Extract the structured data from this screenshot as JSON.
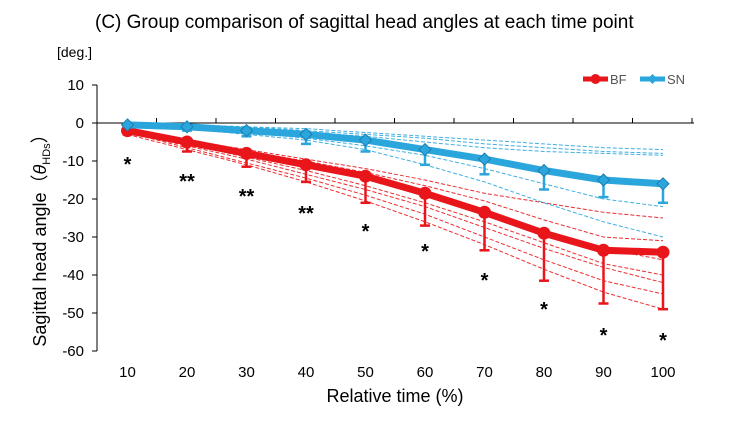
{
  "chart_data": {
    "type": "line",
    "title": "(C) Group comparison of sagittal head angles at each time point",
    "unit_label": "[deg.]",
    "xlabel": "Relative time (%)",
    "ylabel_main": "Sagittal head angle（",
    "ylabel_theta": "θ",
    "ylabel_sub": "HDs",
    "ylabel_close": "）",
    "x": [
      10,
      20,
      30,
      40,
      50,
      60,
      70,
      80,
      90,
      100
    ],
    "x_ticks": [
      "10",
      "20",
      "30",
      "40",
      "50",
      "60",
      "70",
      "80",
      "90",
      "100"
    ],
    "ylim": [
      -60,
      10
    ],
    "y_ticks": [
      10,
      0,
      -10,
      -20,
      -30,
      -40,
      -50,
      -60
    ],
    "legend_position": "top-right",
    "series": [
      {
        "name": "BF",
        "color": "#e8161b",
        "marker": "circle",
        "values": [
          -2,
          -5,
          -8,
          -11,
          -14,
          -18.5,
          -23.5,
          -29,
          -33.5,
          -34
        ],
        "error_down": [
          1,
          2.5,
          3.5,
          4.5,
          7,
          8.5,
          10,
          12.5,
          14,
          15
        ],
        "error_direction": "down"
      },
      {
        "name": "SN",
        "color": "#2ba6dc",
        "marker": "diamond",
        "values": [
          -0.5,
          -1,
          -2,
          -3,
          -4.5,
          -7,
          -9.5,
          -12.5,
          -15,
          -16
        ],
        "error_down": [
          0.5,
          1,
          1.5,
          2.5,
          3,
          4,
          4,
          5,
          4.5,
          5
        ],
        "error_direction": "down"
      }
    ],
    "individual_lines": {
      "BF": [
        [
          -2,
          -4.5,
          -7,
          -9.5,
          -12,
          -15,
          -18.5,
          -21,
          -23.5,
          -25
        ],
        [
          -2,
          -4.5,
          -7.5,
          -10,
          -13,
          -16.5,
          -20.5,
          -25.5,
          -30,
          -31
        ],
        [
          -2,
          -5,
          -8,
          -11,
          -14,
          -18,
          -23,
          -28.5,
          -33,
          -36
        ],
        [
          -2,
          -5.5,
          -9,
          -12.5,
          -16.5,
          -21,
          -26,
          -31.5,
          -37,
          -40
        ],
        [
          -2.5,
          -6,
          -9.5,
          -13.5,
          -17.5,
          -22,
          -27.5,
          -33,
          -38,
          -42
        ],
        [
          -2.5,
          -6.5,
          -10.5,
          -14.5,
          -19,
          -24,
          -30,
          -36,
          -41.5,
          -45
        ],
        [
          -3,
          -7,
          -11,
          -15.5,
          -20.5,
          -26,
          -32,
          -38.5,
          -44.5,
          -49
        ]
      ],
      "SN": [
        [
          0,
          -0.5,
          -1,
          -1.5,
          -2.5,
          -3.5,
          -4.5,
          -5.5,
          -6.5,
          -7
        ],
        [
          0,
          -0.5,
          -1,
          -2,
          -3,
          -4,
          -5.5,
          -6.5,
          -7.5,
          -8
        ],
        [
          -0.5,
          -1,
          -1.5,
          -2.5,
          -3.5,
          -5,
          -6.5,
          -7.5,
          -8,
          -8.5
        ],
        [
          -0.5,
          -1,
          -2,
          -3,
          -4.5,
          -6.5,
          -9,
          -12,
          -14.5,
          -15.5
        ],
        [
          -0.5,
          -1.5,
          -2.5,
          -4,
          -6,
          -8.5,
          -12,
          -16,
          -20,
          -22
        ],
        [
          -1,
          -1.5,
          -3,
          -4.5,
          -7,
          -11,
          -15.5,
          -21,
          -26,
          -30
        ]
      ]
    },
    "significance": [
      "*",
      "**",
      "**",
      "**",
      "*",
      "*",
      "*",
      "*",
      "*",
      "*"
    ]
  }
}
